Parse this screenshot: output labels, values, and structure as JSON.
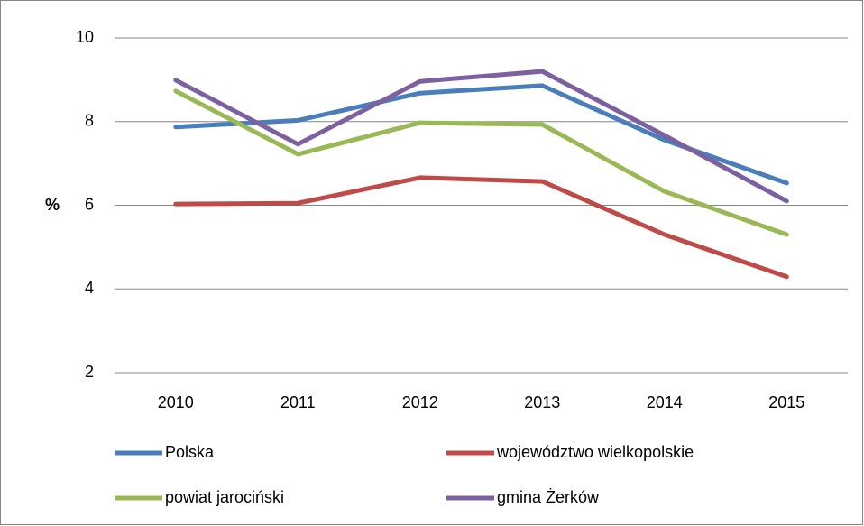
{
  "chart_data": {
    "type": "line",
    "y_label": "%",
    "categories": [
      "2010",
      "2011",
      "2012",
      "2013",
      "2014",
      "2015"
    ],
    "series": [
      {
        "name": "Polska",
        "color": "#4a7ebb",
        "values": [
          7.87,
          8.03,
          8.68,
          8.86,
          7.56,
          6.53
        ]
      },
      {
        "name": "województwo wielkopolskie",
        "color": "#be4b48",
        "values": [
          6.03,
          6.05,
          6.66,
          6.57,
          5.3,
          4.29
        ]
      },
      {
        "name": "powiat jarociński",
        "color": "#98b954",
        "values": [
          8.73,
          7.22,
          7.97,
          7.93,
          6.33,
          5.3
        ]
      },
      {
        "name": "gmina Żerków",
        "color": "#7d60a0",
        "values": [
          8.99,
          7.46,
          8.96,
          9.2,
          7.67,
          6.1
        ]
      }
    ],
    "ylim": [
      2,
      10
    ],
    "yticks": [
      2,
      4,
      6,
      8,
      10
    ],
    "grid": true,
    "legend": "bottom"
  }
}
